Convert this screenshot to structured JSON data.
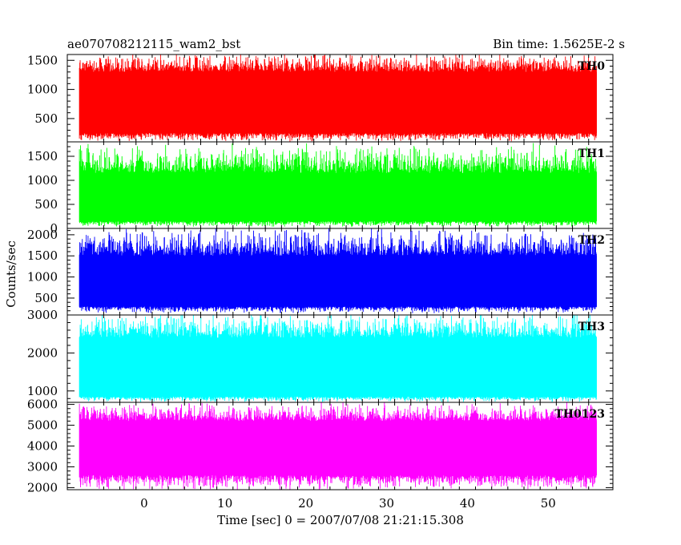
{
  "header": {
    "title": "ae070708212115_wam2_bst",
    "bin_time": "Bin time: 1.5625E-2 s"
  },
  "chart_data": {
    "type": "line",
    "title": "ae070708212115_wam2_bst",
    "subtitle": "Bin time: 1.5625E-2 s",
    "xlabel": "Time [sec] 0 = 2007/07/08 21:21:15.308",
    "ylabel": "Counts/sec",
    "xlim": [
      -9.5,
      58
    ],
    "x_start": -8.0,
    "x_end": 56.0,
    "x_ticks": [
      0,
      10,
      20,
      30,
      40,
      50
    ],
    "grid": false,
    "panels": [
      {
        "name": "TH0",
        "color": "#ff0000",
        "ylim": [
          100,
          1600
        ],
        "y_ticks": [
          500,
          1000,
          1500
        ],
        "typical_low": 250,
        "typical_high": 1300,
        "extreme_low": 120,
        "extreme_high": 1600
      },
      {
        "name": "TH1",
        "color": "#00ff00",
        "ylim": [
          0,
          1800
        ],
        "y_ticks": [
          0,
          500,
          1000,
          1500
        ],
        "typical_low": 150,
        "typical_high": 1150,
        "extreme_low": 40,
        "extreme_high": 1700
      },
      {
        "name": "TH2",
        "color": "#0000ff",
        "ylim": [
          100,
          2150
        ],
        "y_ticks": [
          500,
          1000,
          1500,
          2000
        ],
        "typical_low": 300,
        "typical_high": 1500,
        "extreme_low": 160,
        "extreme_high": 2100
      },
      {
        "name": "TH3",
        "color": "#00ffff",
        "ylim": [
          700,
          3000
        ],
        "y_ticks": [
          1000,
          2000,
          3000
        ],
        "typical_low": 850,
        "typical_high": 2400,
        "extreme_low": 720,
        "extreme_high": 3000
      },
      {
        "name": "TH0123",
        "color": "#ff00ff",
        "ylim": [
          1900,
          6100
        ],
        "y_ticks": [
          2000,
          3000,
          4000,
          5000,
          6000
        ],
        "typical_low": 2600,
        "typical_high": 5200,
        "extreme_low": 1950,
        "extreme_high": 6000
      }
    ]
  }
}
